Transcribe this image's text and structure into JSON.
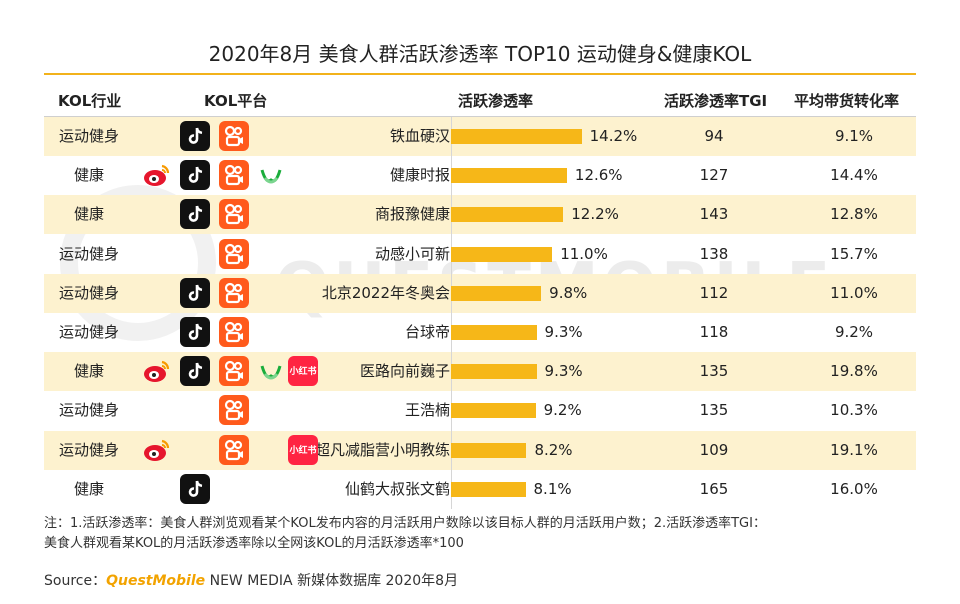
{
  "title": "2020年8月 美食人群活跃渗透率 TOP10 运动健身&健康KOL",
  "headers": {
    "industry": "KOL行业",
    "platform": "KOL平台",
    "penetration": "活跃渗透率",
    "tgi": "活跃渗透率TGI",
    "conversion": "平均带货转化率"
  },
  "watermark": "QUESTMOBILE",
  "chart_data": {
    "type": "bar",
    "title": "2020年8月 美食人群活跃渗透率 TOP10 运动健身&健康KOL",
    "xlabel": "活跃渗透率",
    "ylabel": "",
    "categories": [
      "铁血硬汉",
      "健康时报",
      "商报豫健康",
      "动感小可新",
      "北京2022年冬奥会",
      "台球帝",
      "医路向前巍子",
      "王浩楠",
      "超凡减脂营小明教练",
      "仙鹤大叔张文鹤"
    ],
    "values": [
      14.2,
      12.6,
      12.2,
      11.0,
      9.8,
      9.3,
      9.3,
      9.2,
      8.2,
      8.1
    ],
    "value_unit": "%",
    "xlim": [
      0,
      16
    ]
  },
  "rows": [
    {
      "industry": "运动健身",
      "kol": "铁血硬汉",
      "pct": "14.2%",
      "tgi": "94",
      "conv": "9.1%",
      "icons": [
        "douyin-icon",
        "kuaishou-icon"
      ]
    },
    {
      "industry": "健康",
      "kol": "健康时报",
      "pct": "12.6%",
      "tgi": "127",
      "conv": "14.4%",
      "icons": [
        "weibo-icon",
        "douyin-icon",
        "kuaishou-icon",
        "wechat-channel-icon"
      ]
    },
    {
      "industry": "健康",
      "kol": "商报豫健康",
      "pct": "12.2%",
      "tgi": "143",
      "conv": "12.8%",
      "icons": [
        "douyin-icon",
        "kuaishou-icon"
      ]
    },
    {
      "industry": "运动健身",
      "kol": "动感小可新",
      "pct": "11.0%",
      "tgi": "138",
      "conv": "15.7%",
      "icons": [
        "kuaishou-icon"
      ]
    },
    {
      "industry": "运动健身",
      "kol": "北京2022年冬奥会",
      "pct": "9.8%",
      "tgi": "112",
      "conv": "11.0%",
      "icons": [
        "douyin-icon",
        "kuaishou-icon"
      ]
    },
    {
      "industry": "运动健身",
      "kol": "台球帝",
      "pct": "9.3%",
      "tgi": "118",
      "conv": "9.2%",
      "icons": [
        "douyin-icon",
        "kuaishou-icon"
      ]
    },
    {
      "industry": "健康",
      "kol": "医路向前巍子",
      "pct": "9.3%",
      "tgi": "135",
      "conv": "19.8%",
      "icons": [
        "weibo-icon",
        "douyin-icon",
        "kuaishou-icon",
        "wechat-channel-icon",
        "xiaohongshu-icon"
      ]
    },
    {
      "industry": "运动健身",
      "kol": "王浩楠",
      "pct": "9.2%",
      "tgi": "135",
      "conv": "10.3%",
      "icons": [
        "kuaishou-icon"
      ]
    },
    {
      "industry": "运动健身",
      "kol": "超凡减脂营小明教练",
      "pct": "8.2%",
      "tgi": "109",
      "conv": "19.1%",
      "icons": [
        "weibo-icon",
        "kuaishou-icon",
        "xiaohongshu-icon"
      ]
    },
    {
      "industry": "健康",
      "kol": "仙鹤大叔张文鹤",
      "pct": "8.1%",
      "tgi": "165",
      "conv": "16.0%",
      "icons": [
        "douyin-icon"
      ]
    }
  ],
  "xhs_label": "小红书",
  "note_line1": "注：1.活跃渗透率：美食人群浏览观看某个KOL发布内容的月活跃用户数除以该目标人群的月活跃用户数；2.活跃渗透率TGI：",
  "note_line2": "美食人群观看某KOL的月活跃渗透率除以全网该KOL的月活跃渗透率*100",
  "source_prefix": "Source：",
  "source_brand": "QuestMobile",
  "source_rest": " NEW MEDIA 新媒体数据库 2020年8月",
  "colors": {
    "bar": "#f6b718",
    "alt_row": "#fdf2cf",
    "accent": "#f2b21b"
  }
}
